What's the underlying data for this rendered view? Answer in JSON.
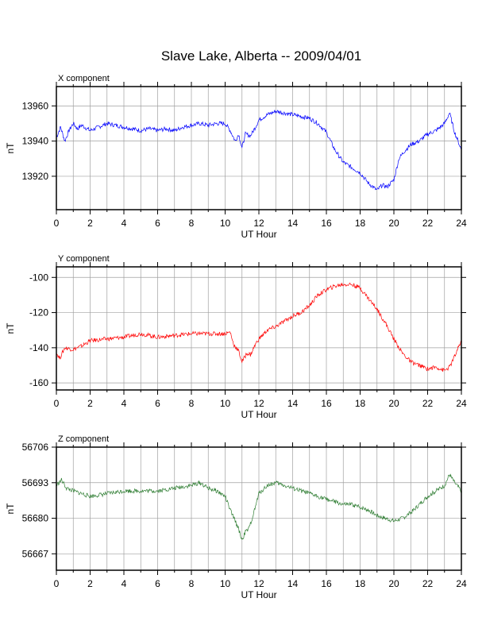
{
  "title": "Slave Lake, Alberta -- 2009/04/01",
  "chart_data": [
    {
      "type": "line",
      "panel_title": "X component",
      "xlabel": "UT Hour",
      "ylabel": "nT",
      "xlim": [
        0,
        24
      ],
      "ylim": [
        13901,
        13971
      ],
      "x_ticks": [
        0,
        2,
        4,
        6,
        8,
        10,
        12,
        14,
        16,
        18,
        20,
        22,
        24
      ],
      "y_ticks": [
        13920,
        13940,
        13960
      ],
      "grid": true,
      "color": "#0000ff",
      "x": [
        0,
        0.25,
        0.5,
        0.75,
        1,
        1.25,
        1.5,
        2,
        2.5,
        3,
        3.5,
        4,
        4.5,
        5,
        5.5,
        6,
        6.5,
        7,
        7.5,
        8,
        8.5,
        9,
        9.5,
        10,
        10.3,
        10.6,
        10.8,
        11,
        11.2,
        11.5,
        11.8,
        12,
        12.5,
        13,
        13.5,
        14,
        14.5,
        15,
        15.5,
        16,
        16.5,
        17,
        17.5,
        18,
        18.5,
        19,
        19.3,
        19.6,
        20,
        20.3,
        20.6,
        21,
        21.5,
        22,
        22.5,
        23,
        23.3,
        23.6,
        24
      ],
      "y": [
        13942,
        13948,
        13940,
        13946,
        13950,
        13947,
        13949,
        13946,
        13948,
        13950,
        13949,
        13948,
        13947,
        13946,
        13947,
        13946,
        13947,
        13946,
        13948,
        13949,
        13950,
        13949,
        13950,
        13950,
        13946,
        13940,
        13944,
        13936,
        13944,
        13943,
        13948,
        13952,
        13955,
        13957,
        13956,
        13955,
        13954,
        13953,
        13950,
        13945,
        13935,
        13928,
        13925,
        13922,
        13916,
        13912,
        13915,
        13914,
        13918,
        13930,
        13934,
        13938,
        13940,
        13944,
        13946,
        13950,
        13956,
        13945,
        13935
      ]
    },
    {
      "type": "line",
      "panel_title": "Y component",
      "xlabel": "UT Hour",
      "ylabel": "nT",
      "xlim": [
        0,
        24
      ],
      "ylim": [
        -164,
        -94
      ],
      "x_ticks": [
        0,
        2,
        4,
        6,
        8,
        10,
        12,
        14,
        16,
        18,
        20,
        22,
        24
      ],
      "y_ticks": [
        -160,
        -140,
        -120,
        -100
      ],
      "grid": true,
      "color": "#ff0000",
      "x": [
        0,
        0.2,
        0.5,
        1,
        1.5,
        2,
        3,
        4,
        5,
        6,
        7,
        8,
        9,
        10,
        10.3,
        10.5,
        10.8,
        11,
        11.3,
        11.5,
        11.8,
        12,
        12.5,
        13,
        13.5,
        14,
        14.5,
        15,
        15.5,
        16,
        16.5,
        17,
        17.5,
        18,
        18.5,
        19,
        19.5,
        20,
        20.5,
        21,
        21.5,
        22,
        22.5,
        23,
        23.3,
        23.6,
        24
      ],
      "y": [
        -143,
        -146,
        -140,
        -141,
        -139,
        -136,
        -135,
        -134,
        -132,
        -134,
        -133,
        -132,
        -132,
        -132,
        -131,
        -138,
        -142,
        -148,
        -143,
        -144,
        -138,
        -135,
        -130,
        -128,
        -125,
        -122,
        -120,
        -116,
        -110,
        -107,
        -105,
        -104,
        -104,
        -106,
        -112,
        -118,
        -126,
        -135,
        -143,
        -148,
        -150,
        -152,
        -151,
        -153,
        -151,
        -145,
        -136
      ]
    },
    {
      "type": "line",
      "panel_title": "Z component",
      "xlabel": "UT Hour",
      "ylabel": "nT",
      "xlim": [
        0,
        24
      ],
      "ylim": [
        56661,
        56706
      ],
      "x_ticks": [
        0,
        2,
        4,
        6,
        8,
        10,
        12,
        14,
        16,
        18,
        20,
        22,
        24
      ],
      "y_ticks": [
        56667,
        56680,
        56693,
        56706
      ],
      "grid": true,
      "color": "#2e7d32",
      "x": [
        0,
        0.3,
        0.6,
        1,
        1.5,
        2,
        3,
        4,
        5,
        6,
        7,
        8,
        8.5,
        9,
        9.5,
        10,
        10.3,
        10.6,
        10.8,
        11,
        11.2,
        11.4,
        11.7,
        12,
        12.5,
        13,
        13.5,
        14,
        14.5,
        15,
        15.5,
        16,
        16.5,
        17,
        17.5,
        18,
        18.5,
        19,
        19.5,
        20,
        20.5,
        21,
        21.5,
        22,
        22.5,
        23,
        23.3,
        23.6,
        24
      ],
      "y": [
        56692,
        56694,
        56691,
        56690,
        56689,
        56688,
        56689,
        56690,
        56690,
        56690,
        56691,
        56692,
        56693,
        56691,
        56690,
        56688,
        56683,
        56679,
        56676,
        56672,
        56675,
        56676,
        56682,
        56689,
        56692,
        56693,
        56692,
        56691,
        56690,
        56689,
        56688,
        56687,
        56686,
        56685,
        56685,
        56684,
        56683,
        56681,
        56680,
        56679,
        56680,
        56682,
        56685,
        56688,
        56690,
        56692,
        56696,
        56693,
        56690
      ]
    }
  ]
}
